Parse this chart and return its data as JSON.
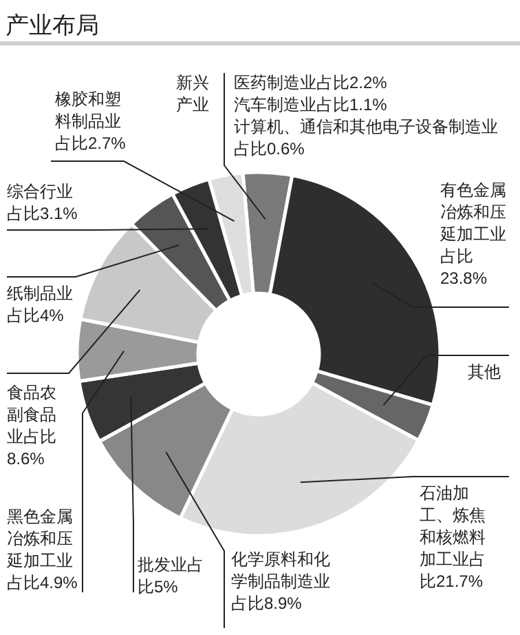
{
  "chart_data": {
    "type": "donut",
    "title": "产业布局",
    "categories": [
      "新兴产业",
      "有色金属冶炼和压延加工业",
      "其他",
      "石油加工、炼焦和核燃料加工业",
      "化学原料和化学制品制造业",
      "批发业",
      "黑色金属冶炼和压延加工业",
      "食品农副食品业",
      "纸制品业",
      "综合行业",
      "橡胶和塑料制品业"
    ],
    "values": [
      3.9,
      23.8,
      3.0,
      21.7,
      8.9,
      5,
      4.9,
      8.6,
      4,
      3.1,
      2.7
    ],
    "value_labels": [
      null,
      "占比23.8%",
      null,
      "占比21.7%",
      "占比8.9%",
      "占比5%",
      "占比4.9%",
      "占比8.6%",
      "占比4%",
      "占比3.1%",
      "占比2.7%"
    ],
    "colors": [
      "#7a7a7a",
      "#2e2e2e",
      "#666666",
      "#dcdcdc",
      "#888888",
      "#353535",
      "#9a9a9a",
      "#c8c8c8",
      "#555555",
      "#333333",
      "#dedede"
    ],
    "annotations": [
      "医药制造业占比2.2%",
      "汽车制造业占比1.1%",
      "计算机、通信和其他电子设备制造业占比0.6%"
    ]
  }
}
